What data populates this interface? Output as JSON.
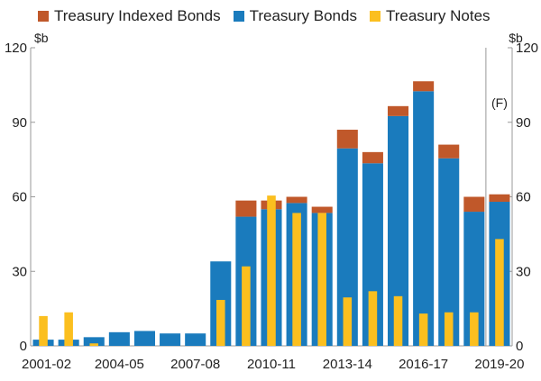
{
  "legend": [
    {
      "name": "Treasury Indexed Bonds",
      "color": "#c0582a"
    },
    {
      "name": "Treasury Bonds",
      "color": "#1a7bbd"
    },
    {
      "name": "Treasury Notes",
      "color": "#fbbf1f"
    }
  ],
  "chart_data": {
    "type": "bar",
    "categories": [
      "2001-02",
      "2002-03",
      "2003-04",
      "2004-05",
      "2005-06",
      "2006-07",
      "2007-08",
      "2008-09",
      "2009-10",
      "2010-11",
      "2011-12",
      "2012-13",
      "2013-14",
      "2014-15",
      "2015-16",
      "2016-17",
      "2017-18",
      "2018-19",
      "2019-20"
    ],
    "x_tick_labels": [
      "2001-02",
      "2004-05",
      "2007-08",
      "2010-11",
      "2013-14",
      "2016-17",
      "2019-20"
    ],
    "stacked_series": [
      {
        "name": "Treasury Bonds",
        "color": "#1a7bbd",
        "values": [
          2.5,
          2.5,
          3.5,
          5.5,
          6,
          5,
          5,
          34,
          52,
          55,
          57.5,
          53.5,
          79.5,
          73.5,
          92.5,
          102.5,
          75.5,
          54,
          58
        ]
      },
      {
        "name": "Treasury Indexed Bonds",
        "color": "#c0582a",
        "values": [
          0,
          0,
          0,
          0,
          0,
          0,
          0,
          0,
          6.5,
          3.5,
          2.5,
          2.5,
          7.5,
          4.5,
          4,
          4,
          5.5,
          6,
          3
        ]
      }
    ],
    "overlay_series": {
      "name": "Treasury Notes",
      "color": "#fbbf1f",
      "values": [
        12,
        13.5,
        1,
        null,
        null,
        null,
        null,
        18.5,
        32,
        60.5,
        53.5,
        53.5,
        19.5,
        22,
        20,
        13,
        13.5,
        13.5,
        43
      ]
    },
    "ylim": [
      0,
      120
    ],
    "yticks": [
      0,
      30,
      60,
      90,
      120
    ],
    "unit_left": "$b",
    "unit_right": "$b",
    "forecast_label": "(F)",
    "grid": false
  }
}
